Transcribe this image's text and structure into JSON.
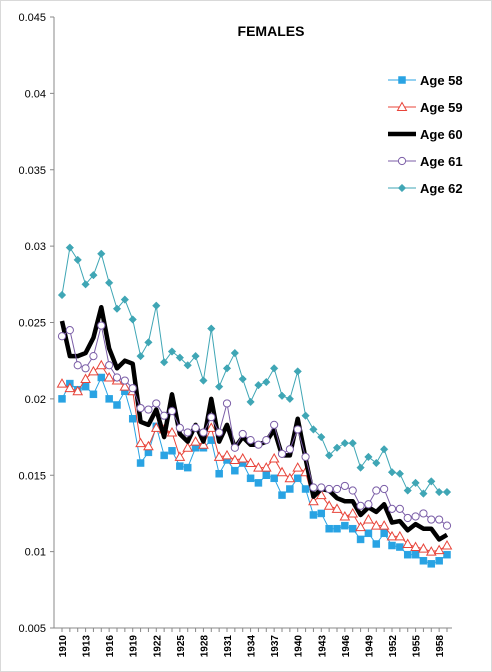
{
  "chart_data": {
    "type": "line",
    "title": "FEMALES",
    "xlabel": "",
    "ylabel": "",
    "ylim": [
      0.005,
      0.045
    ],
    "yticks": [
      "0.005",
      "0.01",
      "0.015",
      "0.02",
      "0.025",
      "0.03",
      "0.035",
      "0.04",
      "0.045"
    ],
    "grid": false,
    "legend_position": "right",
    "x": [
      1910,
      1911,
      1912,
      1913,
      1914,
      1915,
      1916,
      1917,
      1918,
      1919,
      1920,
      1921,
      1922,
      1923,
      1924,
      1925,
      1926,
      1927,
      1928,
      1929,
      1930,
      1931,
      1932,
      1933,
      1934,
      1935,
      1936,
      1937,
      1938,
      1939,
      1940,
      1941,
      1942,
      1943,
      1944,
      1945,
      1946,
      1947,
      1948,
      1949,
      1950,
      1951,
      1952,
      1953,
      1954,
      1955,
      1956,
      1957,
      1958,
      1959
    ],
    "xtick_labels": [
      "1910",
      "1913",
      "1916",
      "1919",
      "1922",
      "1925",
      "1928",
      "1931",
      "1934",
      "1937",
      "1940",
      "1943",
      "1946",
      "1949",
      "1952",
      "1955",
      "1958"
    ],
    "series": [
      {
        "name": "Age 58",
        "color": "#29a3e3",
        "marker": "square",
        "line_width": 1,
        "values": [
          0.02,
          0.021,
          0.0206,
          0.0208,
          0.0203,
          0.0214,
          0.02,
          0.0196,
          0.0205,
          0.0187,
          0.0158,
          0.0165,
          0.0182,
          0.0163,
          0.0166,
          0.0156,
          0.0155,
          0.0168,
          0.0168,
          0.0173,
          0.0151,
          0.016,
          0.0153,
          0.0158,
          0.0148,
          0.0145,
          0.015,
          0.0148,
          0.0137,
          0.0141,
          0.0148,
          0.0141,
          0.0124,
          0.0125,
          0.0115,
          0.0115,
          0.0117,
          0.0115,
          0.0108,
          0.0112,
          0.0105,
          0.0112,
          0.0104,
          0.0103,
          0.0098,
          0.0098,
          0.0094,
          0.0092,
          0.0094,
          0.0098
        ]
      },
      {
        "name": "Age 59",
        "color": "#e8443a",
        "marker": "triangle",
        "line_width": 1,
        "values": [
          0.021,
          0.0207,
          0.0205,
          0.0213,
          0.0218,
          0.0222,
          0.0214,
          0.0212,
          0.0208,
          0.0205,
          0.0171,
          0.0169,
          0.0181,
          0.018,
          0.0178,
          0.0162,
          0.0168,
          0.0172,
          0.017,
          0.0181,
          0.0162,
          0.0163,
          0.016,
          0.0161,
          0.0158,
          0.0155,
          0.0155,
          0.0161,
          0.0152,
          0.0148,
          0.0155,
          0.0152,
          0.0133,
          0.0137,
          0.013,
          0.0128,
          0.0123,
          0.0125,
          0.0116,
          0.0121,
          0.0117,
          0.0117,
          0.011,
          0.011,
          0.0105,
          0.0103,
          0.0102,
          0.01,
          0.0101,
          0.0104
        ]
      },
      {
        "name": "Age 60",
        "color": "#000000",
        "marker": "none",
        "line_width": 4.5,
        "values": [
          0.0251,
          0.0228,
          0.0228,
          0.023,
          0.024,
          0.026,
          0.0233,
          0.022,
          0.0225,
          0.0223,
          0.0185,
          0.0183,
          0.0193,
          0.0175,
          0.0203,
          0.0177,
          0.0172,
          0.0183,
          0.0172,
          0.02,
          0.0172,
          0.0183,
          0.0168,
          0.0175,
          0.017,
          0.017,
          0.0172,
          0.018,
          0.0163,
          0.0163,
          0.0187,
          0.0161,
          0.0136,
          0.0141,
          0.014,
          0.0135,
          0.0133,
          0.0133,
          0.0124,
          0.0129,
          0.0126,
          0.0131,
          0.0119,
          0.012,
          0.0114,
          0.0118,
          0.0115,
          0.0115,
          0.0108,
          0.0111
        ]
      },
      {
        "name": "Age 61",
        "color": "#7b5ea7",
        "marker": "circle",
        "line_width": 1,
        "values": [
          0.0241,
          0.0245,
          0.0222,
          0.022,
          0.0228,
          0.0248,
          0.0222,
          0.0214,
          0.0212,
          0.0207,
          0.0194,
          0.0193,
          0.0197,
          0.0189,
          0.0192,
          0.0181,
          0.0178,
          0.0181,
          0.0178,
          0.0188,
          0.0178,
          0.0197,
          0.0168,
          0.0177,
          0.0173,
          0.017,
          0.0173,
          0.0183,
          0.0164,
          0.0167,
          0.018,
          0.0162,
          0.0142,
          0.0142,
          0.0141,
          0.0141,
          0.0143,
          0.014,
          0.013,
          0.0131,
          0.014,
          0.0141,
          0.0128,
          0.0128,
          0.0122,
          0.0123,
          0.0125,
          0.0121,
          0.0121,
          0.0117
        ]
      },
      {
        "name": "Age 62",
        "color": "#3fa6b5",
        "marker": "diamond",
        "line_width": 1,
        "values": [
          0.0268,
          0.0299,
          0.0291,
          0.0275,
          0.0281,
          0.0295,
          0.0276,
          0.0259,
          0.0265,
          0.0252,
          0.0228,
          0.0237,
          0.0261,
          0.0224,
          0.0231,
          0.0227,
          0.0222,
          0.0228,
          0.0212,
          0.0246,
          0.0208,
          0.022,
          0.023,
          0.0213,
          0.0198,
          0.0209,
          0.0211,
          0.022,
          0.0202,
          0.02,
          0.0218,
          0.0189,
          0.018,
          0.0175,
          0.0163,
          0.0168,
          0.0171,
          0.0171,
          0.0155,
          0.0162,
          0.0158,
          0.0167,
          0.0152,
          0.0151,
          0.014,
          0.0145,
          0.0138,
          0.0146,
          0.0139,
          0.0139
        ]
      }
    ]
  }
}
